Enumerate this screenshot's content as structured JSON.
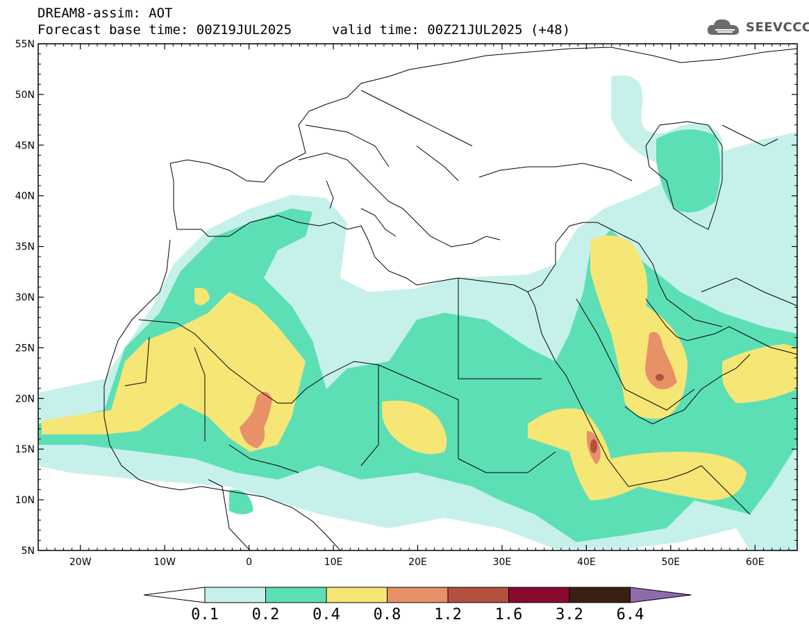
{
  "header": {
    "model_line": "DREAM8-assim: AOT",
    "base_time_line": "Forecast base time: 00Z19JUL2025",
    "valid_time_line": "valid time: 00Z21JUL2025 (+48)"
  },
  "logo": {
    "text": "SEEVCCC",
    "icon": "cloud-icon"
  },
  "map": {
    "lat_labels": [
      "55N",
      "50N",
      "45N",
      "40N",
      "35N",
      "30N",
      "25N",
      "20N",
      "15N",
      "10N",
      "5N"
    ],
    "lon_labels": [
      "20W",
      "10W",
      "0",
      "10E",
      "20E",
      "30E",
      "40E",
      "50E",
      "60E"
    ],
    "lon_range": [
      -25,
      65
    ],
    "lat_range": [
      5,
      55
    ]
  },
  "colorbar": {
    "colors": [
      "#ffffff",
      "#c6f1ea",
      "#5ddfb6",
      "#f6e676",
      "#e89068",
      "#b4503f",
      "#870b2e",
      "#3a2013",
      "#8e6bad"
    ],
    "labels": [
      "0.1",
      "0.2",
      "0.4",
      "0.8",
      "1.2",
      "1.6",
      "3.2",
      "6.4"
    ]
  }
}
